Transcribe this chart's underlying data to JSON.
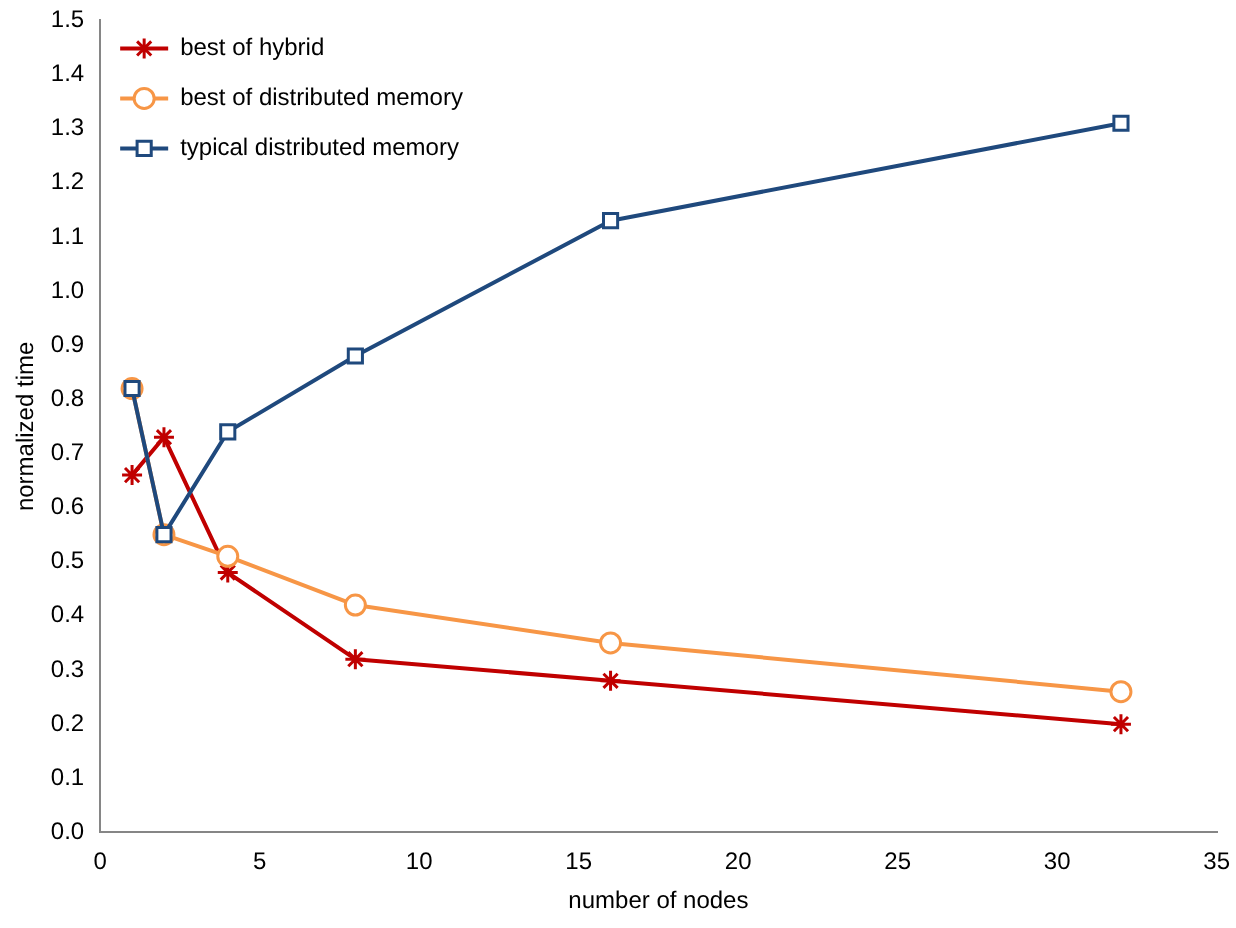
{
  "chart_data": {
    "type": "line",
    "xlabel": "number of nodes",
    "ylabel": "normalized time",
    "xlim": [
      0,
      35
    ],
    "xticks": [
      0,
      5,
      10,
      15,
      20,
      25,
      30,
      35
    ],
    "ylim": [
      0,
      1.5
    ],
    "yticks": [
      {
        "value": 0,
        "label": "0.0"
      },
      {
        "value": 0.1,
        "label": "0.1"
      },
      {
        "value": 0.2,
        "label": "0.2"
      },
      {
        "value": 0.3,
        "label": "0.3"
      },
      {
        "value": 0.4,
        "label": "0.4"
      },
      {
        "value": 0.5,
        "label": "0.5"
      },
      {
        "value": 0.6,
        "label": "0.6"
      },
      {
        "value": 0.7,
        "label": "0.7"
      },
      {
        "value": 0.8,
        "label": "0.8"
      },
      {
        "value": 0.9,
        "label": "0.9"
      },
      {
        "value": 1.0,
        "label": "1.0"
      },
      {
        "value": 1.1,
        "label": "1.1"
      },
      {
        "value": 1.2,
        "label": "1.2"
      },
      {
        "value": 1.3,
        "label": "1.3"
      },
      {
        "value": 1.4,
        "label": "1.4"
      },
      {
        "value": 1.5,
        "label": "1.5"
      }
    ],
    "x": [
      1,
      2,
      4,
      8,
      16,
      32
    ],
    "grid": false,
    "legend": "top left",
    "series": [
      {
        "name": "best of hybrid",
        "color": "#c00000",
        "marker": "cross",
        "values": [
          0.66,
          0.73,
          0.48,
          0.32,
          0.28,
          0.2
        ]
      },
      {
        "name": "best of distributed memory",
        "color": "#f79646",
        "marker": "circle",
        "values": [
          0.82,
          0.55,
          0.51,
          0.42,
          0.35,
          0.26
        ]
      },
      {
        "name": "typical distributed memory",
        "color": "#1f497d",
        "marker": "square",
        "values": [
          0.82,
          0.55,
          0.74,
          0.88,
          1.13,
          1.31
        ]
      }
    ]
  }
}
